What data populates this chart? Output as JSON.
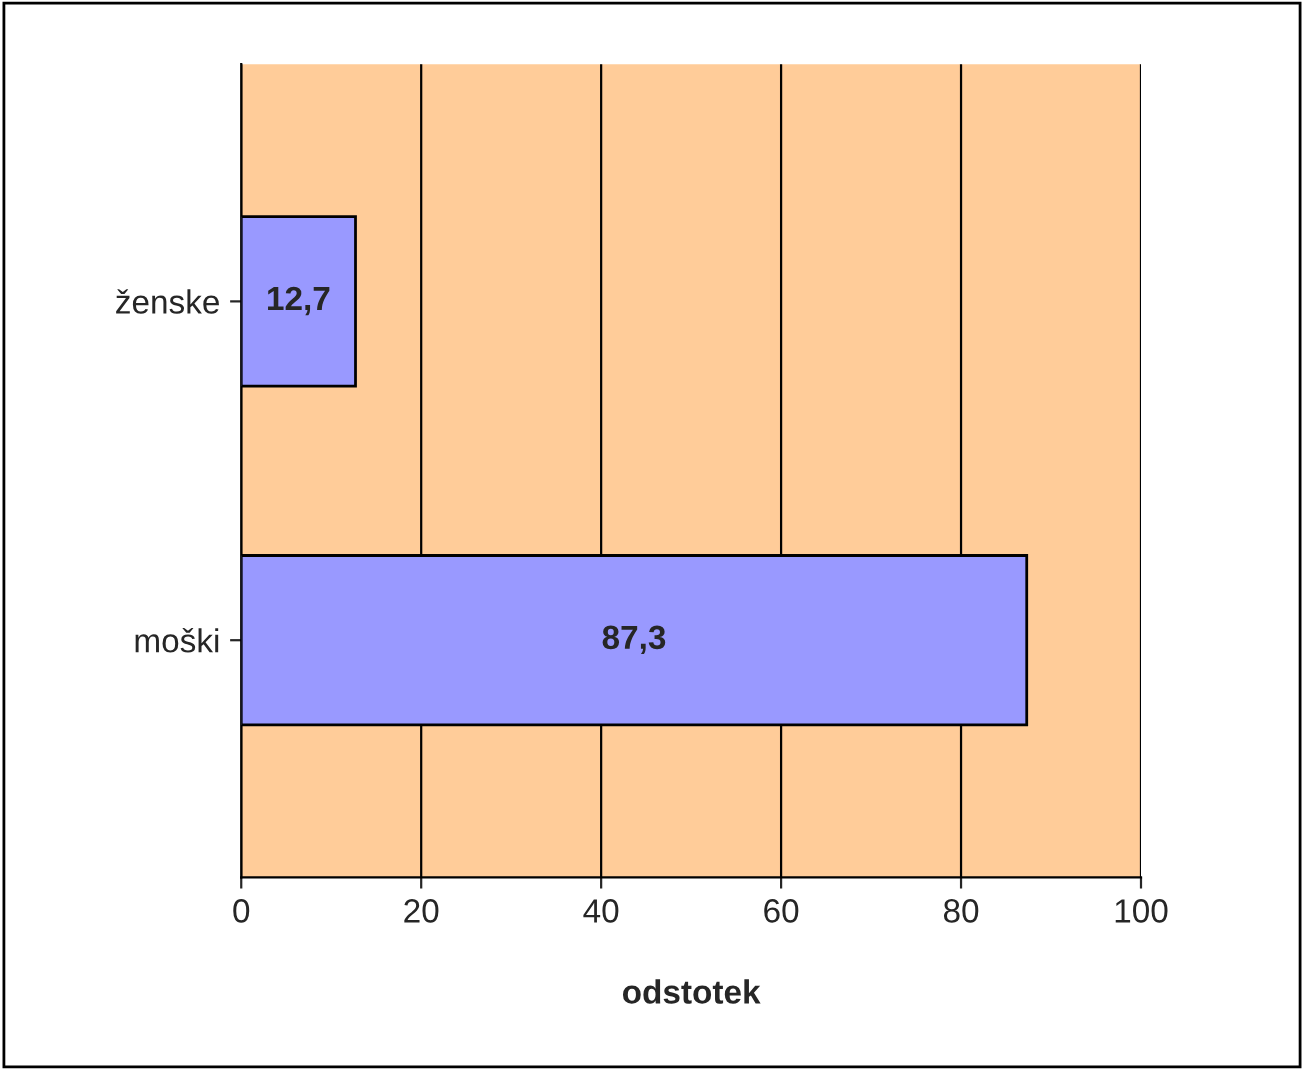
{
  "chart_data": {
    "type": "bar",
    "orientation": "horizontal",
    "xlabel": "odstotek",
    "categories": [
      "ženske",
      "moški"
    ],
    "values": [
      12.7,
      87.3
    ],
    "value_labels": [
      "12,7",
      "87,3"
    ],
    "color": "#9999ff",
    "xlim": [
      0,
      100
    ],
    "xticks": [
      0,
      20,
      40,
      60,
      80,
      100
    ],
    "grid": "x",
    "legend": false
  }
}
